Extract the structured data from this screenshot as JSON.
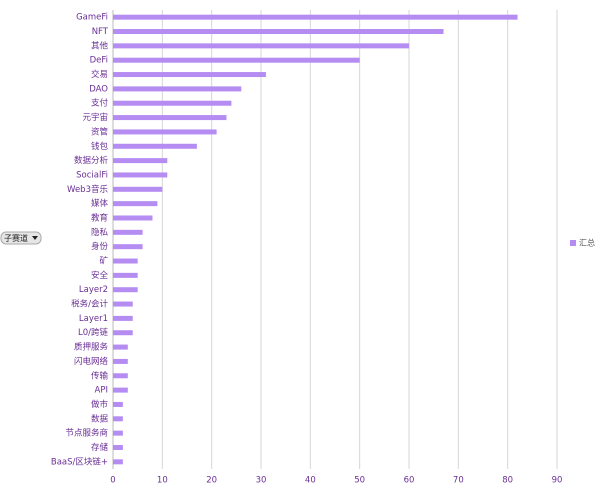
{
  "filter": "子赛道",
  "chart_data": {
    "type": "barh",
    "categories": [
      "GameFi",
      "NFT",
      "其他",
      "DeFi",
      "交易",
      "DAO",
      "支付",
      "元宇宙",
      "资管",
      "钱包",
      "数据分析",
      "SocialFi",
      "Web3音乐",
      "媒体",
      "教育",
      "隐私",
      "身份",
      "矿",
      "安全",
      "Layer2",
      "税务/会计",
      "Layer1",
      "L0/跨链",
      "质押服务",
      "闪电网络",
      "传输",
      "API",
      "做市",
      "数据",
      "节点服务商",
      "存储",
      "BaaS/区块链+"
    ],
    "series": [
      {
        "name": "汇总",
        "color": "#b58cf2",
        "values": [
          82,
          67,
          60,
          50,
          31,
          26,
          24,
          23,
          21,
          17,
          11,
          11,
          10,
          9,
          8,
          6,
          6,
          5,
          5,
          5,
          4,
          4,
          4,
          3,
          3,
          3,
          3,
          2,
          2,
          2,
          2,
          2
        ]
      }
    ],
    "xlim": [
      0,
      90
    ],
    "xticks": [
      0,
      10,
      20,
      30,
      40,
      50,
      60,
      70,
      80,
      90
    ],
    "grid": true
  }
}
